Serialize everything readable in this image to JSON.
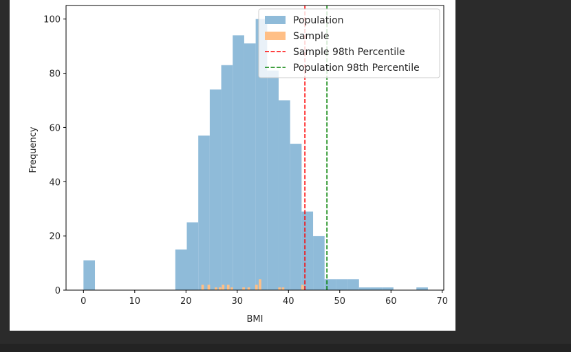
{
  "chart_data": {
    "type": "bar",
    "title": "",
    "xlabel": "BMI",
    "ylabel": "Frequency",
    "xlim": [
      -3.4,
      70.3
    ],
    "ylim": [
      0,
      105
    ],
    "xticks": [
      "0",
      "10",
      "20",
      "30",
      "40",
      "50",
      "60",
      "70"
    ],
    "yticks": [
      "0",
      "20",
      "40",
      "60",
      "80",
      "100"
    ],
    "series": [
      {
        "name": "Population",
        "color": "#8fbbd9",
        "bin_width": 2.24,
        "bins": [
          {
            "x0": 0.0,
            "value": 11
          },
          {
            "x0": 17.92,
            "value": 15
          },
          {
            "x0": 20.16,
            "value": 25
          },
          {
            "x0": 22.4,
            "value": 57
          },
          {
            "x0": 24.64,
            "value": 74
          },
          {
            "x0": 26.88,
            "value": 83
          },
          {
            "x0": 29.12,
            "value": 94
          },
          {
            "x0": 31.36,
            "value": 91
          },
          {
            "x0": 33.6,
            "value": 100
          },
          {
            "x0": 35.84,
            "value": 81
          },
          {
            "x0": 38.08,
            "value": 70
          },
          {
            "x0": 40.32,
            "value": 54
          },
          {
            "x0": 42.56,
            "value": 29
          },
          {
            "x0": 44.8,
            "value": 20
          },
          {
            "x0": 47.04,
            "value": 4
          },
          {
            "x0": 49.28,
            "value": 4
          },
          {
            "x0": 51.52,
            "value": 4
          },
          {
            "x0": 53.76,
            "value": 1
          },
          {
            "x0": 56.0,
            "value": 1
          },
          {
            "x0": 58.24,
            "value": 1
          },
          {
            "x0": 64.96,
            "value": 1
          }
        ]
      },
      {
        "name": "Sample",
        "color": "#ffbf86",
        "bin_width": 0.5,
        "bins": [
          {
            "x0": 23.0,
            "value": 2
          },
          {
            "x0": 24.2,
            "value": 2
          },
          {
            "x0": 25.6,
            "value": 1
          },
          {
            "x0": 26.4,
            "value": 1
          },
          {
            "x0": 27.0,
            "value": 2
          },
          {
            "x0": 28.0,
            "value": 2
          },
          {
            "x0": 28.7,
            "value": 1
          },
          {
            "x0": 31.0,
            "value": 1
          },
          {
            "x0": 32.0,
            "value": 1
          },
          {
            "x0": 33.5,
            "value": 2
          },
          {
            "x0": 34.2,
            "value": 4
          },
          {
            "x0": 38.0,
            "value": 1
          },
          {
            "x0": 38.7,
            "value": 1
          },
          {
            "x0": 42.5,
            "value": 2
          }
        ]
      }
    ],
    "vlines": [
      {
        "name": "Sample 98th Percentile",
        "x": 43.2,
        "color": "#ff0000"
      },
      {
        "name": "Population 98th Percentile",
        "x": 47.5,
        "color": "#008000"
      }
    ],
    "legend": {
      "position": "top-right",
      "entries": [
        {
          "label": "Population",
          "kind": "patch",
          "color": "#8fbbd9"
        },
        {
          "label": "Sample",
          "kind": "patch",
          "color": "#ffbf86"
        },
        {
          "label": "Sample 98th Percentile",
          "kind": "dashed-line",
          "color": "#ff0000"
        },
        {
          "label": "Population 98th Percentile",
          "kind": "dashed-line",
          "color": "#008000"
        }
      ]
    }
  }
}
